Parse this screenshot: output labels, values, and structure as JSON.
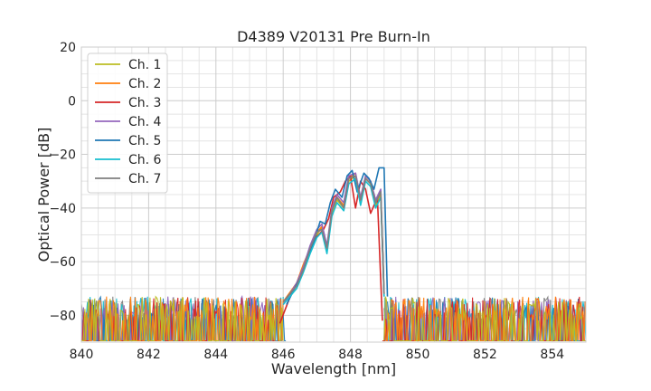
{
  "chart_data": {
    "type": "line",
    "title": "D4389 V20131 Pre Burn-In",
    "xlabel": "Wavelength [nm]",
    "ylabel": "Optical Power [dB]",
    "xlim": [
      840,
      855
    ],
    "ylim": [
      -90,
      20
    ],
    "x_ticks": [
      "840",
      "842",
      "844",
      "846",
      "848",
      "850",
      "852",
      "854"
    ],
    "y_ticks": [
      "20",
      "0",
      "−20",
      "−40",
      "−60",
      "−80"
    ],
    "grid": true,
    "legend_position": "upper-left",
    "noise_floor": [
      -90,
      -73
    ],
    "series": [
      {
        "name": "Ch. 1",
        "color": "#bcbd22",
        "values": [
          [
            846.0,
            -75
          ],
          [
            846.4,
            -69
          ],
          [
            846.6,
            -62
          ],
          [
            846.8,
            -56
          ],
          [
            847.0,
            -50
          ],
          [
            847.15,
            -47
          ],
          [
            847.3,
            -56
          ],
          [
            847.45,
            -42
          ],
          [
            847.6,
            -37
          ],
          [
            847.8,
            -40
          ],
          [
            847.95,
            -30
          ],
          [
            848.15,
            -28
          ],
          [
            848.3,
            -38
          ],
          [
            848.45,
            -29
          ],
          [
            848.6,
            -31
          ],
          [
            848.75,
            -39
          ],
          [
            848.9,
            -35
          ],
          [
            849.0,
            -72
          ]
        ]
      },
      {
        "name": "Ch. 2",
        "color": "#ff7f0e",
        "values": [
          [
            846.0,
            -75
          ],
          [
            846.4,
            -68
          ],
          [
            846.6,
            -61
          ],
          [
            846.8,
            -55
          ],
          [
            847.0,
            -49
          ],
          [
            847.15,
            -47
          ],
          [
            847.3,
            -55
          ],
          [
            847.45,
            -41
          ],
          [
            847.6,
            -36
          ],
          [
            847.8,
            -39
          ],
          [
            847.95,
            -29
          ],
          [
            848.15,
            -27
          ],
          [
            848.3,
            -37
          ],
          [
            848.45,
            -28
          ],
          [
            848.6,
            -30
          ],
          [
            848.75,
            -38
          ],
          [
            848.9,
            -34
          ],
          [
            849.0,
            -72
          ]
        ]
      },
      {
        "name": "Ch. 3",
        "color": "#d62728",
        "values": [
          [
            845.9,
            -83
          ],
          [
            846.3,
            -70
          ],
          [
            846.5,
            -66
          ],
          [
            846.7,
            -60
          ],
          [
            846.9,
            -52
          ],
          [
            847.05,
            -50
          ],
          [
            847.2,
            -48
          ],
          [
            847.35,
            -44
          ],
          [
            847.5,
            -36
          ],
          [
            847.7,
            -34
          ],
          [
            847.85,
            -30
          ],
          [
            848.0,
            -28
          ],
          [
            848.15,
            -40
          ],
          [
            848.3,
            -30
          ],
          [
            848.45,
            -33
          ],
          [
            848.6,
            -42
          ],
          [
            848.8,
            -36
          ],
          [
            848.95,
            -82
          ]
        ]
      },
      {
        "name": "Ch. 4",
        "color": "#9467bd",
        "values": [
          [
            846.0,
            -76
          ],
          [
            846.4,
            -68
          ],
          [
            846.6,
            -62
          ],
          [
            846.8,
            -54
          ],
          [
            847.0,
            -48
          ],
          [
            847.15,
            -46
          ],
          [
            847.3,
            -54
          ],
          [
            847.45,
            -40
          ],
          [
            847.6,
            -35
          ],
          [
            847.8,
            -38
          ],
          [
            847.95,
            -28
          ],
          [
            848.15,
            -27
          ],
          [
            848.3,
            -36
          ],
          [
            848.45,
            -28
          ],
          [
            848.6,
            -30
          ],
          [
            848.75,
            -37
          ],
          [
            848.9,
            -33
          ],
          [
            849.0,
            -73
          ]
        ]
      },
      {
        "name": "Ch. 5",
        "color": "#1f77b4",
        "values": [
          [
            846.1,
            -76
          ],
          [
            846.5,
            -66
          ],
          [
            846.7,
            -60
          ],
          [
            846.9,
            -53
          ],
          [
            847.1,
            -45
          ],
          [
            847.25,
            -46
          ],
          [
            847.4,
            -38
          ],
          [
            847.55,
            -33
          ],
          [
            847.75,
            -36
          ],
          [
            847.9,
            -28
          ],
          [
            848.05,
            -26
          ],
          [
            848.2,
            -34
          ],
          [
            848.4,
            -27
          ],
          [
            848.55,
            -29
          ],
          [
            848.7,
            -33
          ],
          [
            848.85,
            -25
          ],
          [
            849.0,
            -25
          ],
          [
            849.1,
            -73
          ]
        ]
      },
      {
        "name": "Ch. 6",
        "color": "#17becf",
        "values": [
          [
            846.0,
            -76
          ],
          [
            846.4,
            -70
          ],
          [
            846.6,
            -64
          ],
          [
            846.8,
            -57
          ],
          [
            847.0,
            -51
          ],
          [
            847.15,
            -49
          ],
          [
            847.3,
            -57
          ],
          [
            847.45,
            -43
          ],
          [
            847.6,
            -38
          ],
          [
            847.8,
            -41
          ],
          [
            847.95,
            -31
          ],
          [
            848.15,
            -29
          ],
          [
            848.3,
            -39
          ],
          [
            848.45,
            -30
          ],
          [
            848.6,
            -32
          ],
          [
            848.75,
            -40
          ],
          [
            848.9,
            -36
          ],
          [
            849.0,
            -73
          ]
        ]
      },
      {
        "name": "Ch. 7",
        "color": "#7f7f7f",
        "values": [
          [
            846.0,
            -75
          ],
          [
            846.4,
            -69
          ],
          [
            846.6,
            -63
          ],
          [
            846.8,
            -55
          ],
          [
            847.0,
            -49
          ],
          [
            847.15,
            -48
          ],
          [
            847.3,
            -55
          ],
          [
            847.45,
            -41
          ],
          [
            847.6,
            -36
          ],
          [
            847.8,
            -40
          ],
          [
            847.95,
            -29
          ],
          [
            848.15,
            -28
          ],
          [
            848.3,
            -37
          ],
          [
            848.45,
            -29
          ],
          [
            848.6,
            -31
          ],
          [
            848.75,
            -38
          ],
          [
            848.9,
            -34
          ],
          [
            849.0,
            -72
          ]
        ]
      }
    ]
  }
}
